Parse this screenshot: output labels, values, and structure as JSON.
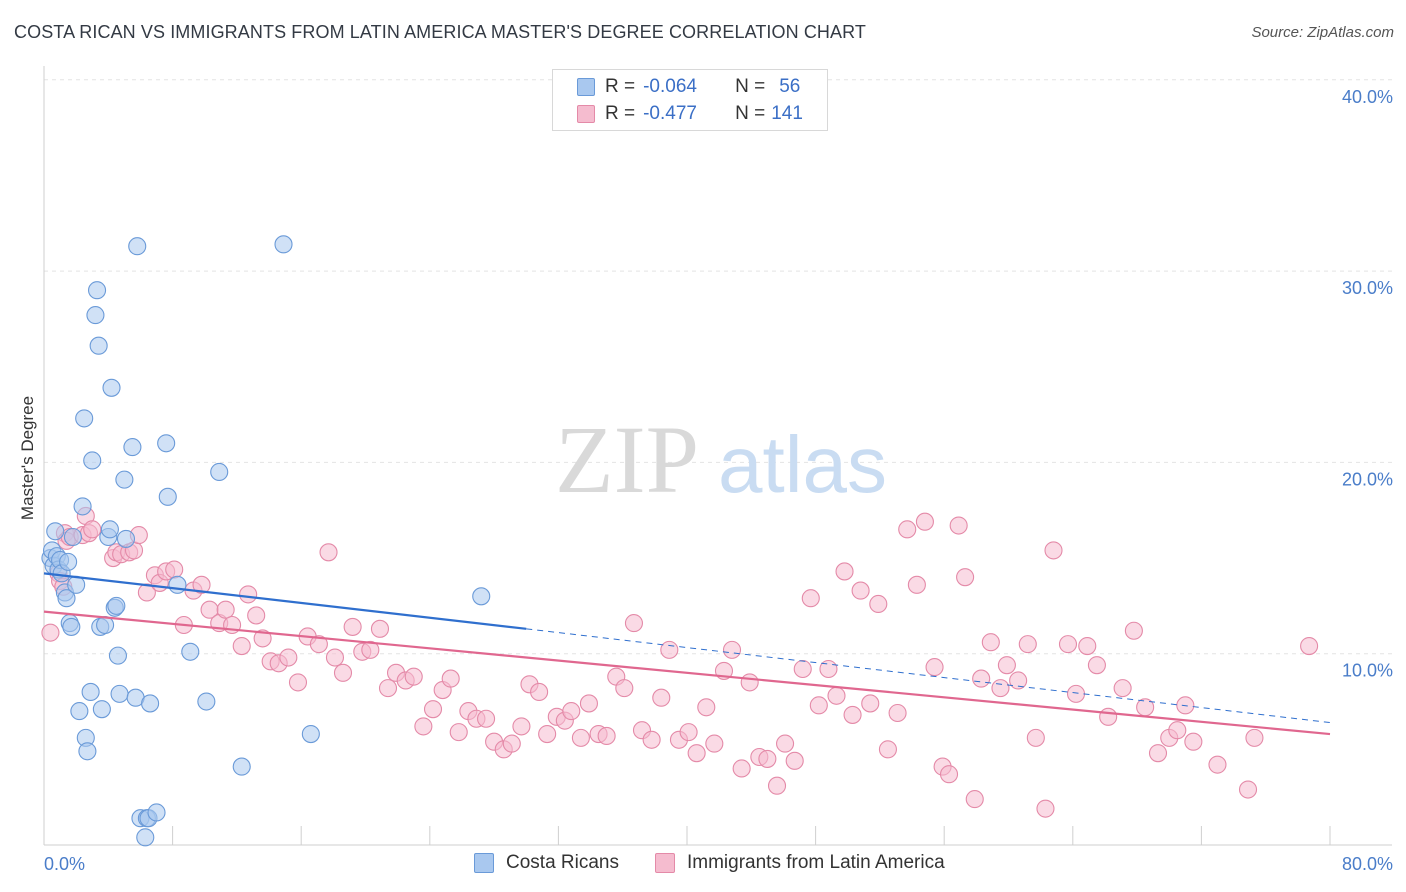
{
  "title": "COSTA RICAN VS IMMIGRANTS FROM LATIN AMERICA MASTER'S DEGREE CORRELATION CHART",
  "source": "Source: ZipAtlas.com",
  "watermark": {
    "zip": "ZIP",
    "atlas": "atlas"
  },
  "legend": {
    "r_label": "R =",
    "n_label": "N =",
    "rows": [
      {
        "r": "-0.064",
        "n": "56",
        "color": "#a9c8ef",
        "border": "#6a9ad8"
      },
      {
        "r": "-0.477",
        "n": "141",
        "color": "#f5bccf",
        "border": "#e48aa8"
      }
    ]
  },
  "bottom_legend": [
    {
      "label": "Costa Ricans",
      "color": "#a9c8ef",
      "border": "#6a9ad8"
    },
    {
      "label": "Immigrants from Latin America",
      "color": "#f5bccf",
      "border": "#e48aa8"
    }
  ],
  "chart_data": {
    "type": "scatter",
    "ylabel": "Master's Degree",
    "x_tick_labels": [
      "0.0%",
      "80.0%"
    ],
    "y_tick_labels": [
      "10.0%",
      "20.0%",
      "30.0%",
      "40.0%"
    ],
    "xlim": [
      0,
      80
    ],
    "ylim": [
      0,
      40
    ],
    "grid": true,
    "colors": {
      "blue_fill": "#a9c8ef",
      "blue_stroke": "#6a9ad8",
      "pink_fill": "#f5bccf",
      "pink_stroke": "#e48aa8",
      "blue_line": "#2f6fce",
      "pink_line": "#e0678f",
      "tick_label": "#4a7dc9"
    },
    "series": [
      {
        "name": "Costa Ricans",
        "trend": {
          "x0": 0,
          "y0": 14.2,
          "x1": 30,
          "y1": 11.3,
          "dash_to_x": 80,
          "dash_to_y": 6.4
        },
        "points": [
          [
            0.4,
            15.0
          ],
          [
            0.5,
            15.4
          ],
          [
            0.6,
            14.6
          ],
          [
            0.7,
            16.4
          ],
          [
            0.8,
            15.1
          ],
          [
            0.9,
            14.4
          ],
          [
            1.0,
            14.9
          ],
          [
            1.1,
            14.2
          ],
          [
            1.3,
            13.2
          ],
          [
            1.4,
            12.9
          ],
          [
            1.5,
            14.8
          ],
          [
            1.6,
            11.6
          ],
          [
            1.7,
            11.4
          ],
          [
            1.8,
            16.1
          ],
          [
            2.0,
            13.6
          ],
          [
            2.2,
            7.0
          ],
          [
            2.4,
            17.7
          ],
          [
            2.5,
            22.3
          ],
          [
            2.6,
            5.6
          ],
          [
            2.7,
            4.9
          ],
          [
            2.9,
            8.0
          ],
          [
            3.0,
            20.1
          ],
          [
            3.3,
            29.0
          ],
          [
            3.2,
            27.7
          ],
          [
            3.4,
            26.1
          ],
          [
            3.6,
            7.1
          ],
          [
            3.5,
            11.4
          ],
          [
            3.8,
            11.5
          ],
          [
            4.0,
            16.1
          ],
          [
            4.1,
            16.5
          ],
          [
            4.2,
            23.9
          ],
          [
            4.4,
            12.4
          ],
          [
            4.5,
            12.5
          ],
          [
            4.6,
            9.9
          ],
          [
            4.7,
            7.9
          ],
          [
            5.0,
            19.1
          ],
          [
            5.1,
            16.0
          ],
          [
            5.5,
            20.8
          ],
          [
            5.7,
            7.7
          ],
          [
            5.8,
            31.3
          ],
          [
            6.0,
            1.4
          ],
          [
            6.3,
            0.4
          ],
          [
            6.4,
            1.4
          ],
          [
            6.5,
            1.4
          ],
          [
            6.6,
            7.4
          ],
          [
            7.0,
            1.7
          ],
          [
            7.6,
            21.0
          ],
          [
            7.7,
            18.2
          ],
          [
            8.3,
            13.6
          ],
          [
            9.1,
            10.1
          ],
          [
            10.1,
            7.5
          ],
          [
            10.9,
            19.5
          ],
          [
            12.3,
            4.1
          ],
          [
            14.9,
            31.4
          ],
          [
            16.6,
            5.8
          ],
          [
            27.2,
            13.0
          ]
        ]
      },
      {
        "name": "Immigrants from Latin America",
        "trend": {
          "x0": 0,
          "y0": 12.2,
          "x1": 80,
          "y1": 5.8
        },
        "points": [
          [
            0.4,
            11.1
          ],
          [
            0.9,
            14.2
          ],
          [
            1.0,
            13.8
          ],
          [
            1.2,
            13.5
          ],
          [
            1.3,
            16.3
          ],
          [
            1.4,
            15.9
          ],
          [
            1.6,
            16.1
          ],
          [
            2.4,
            16.2
          ],
          [
            2.6,
            17.2
          ],
          [
            2.8,
            16.3
          ],
          [
            3.0,
            16.5
          ],
          [
            4.3,
            15.0
          ],
          [
            4.5,
            15.3
          ],
          [
            4.8,
            15.2
          ],
          [
            5.3,
            15.3
          ],
          [
            5.6,
            15.4
          ],
          [
            5.9,
            16.2
          ],
          [
            6.4,
            13.2
          ],
          [
            6.9,
            14.1
          ],
          [
            7.2,
            13.7
          ],
          [
            7.6,
            14.3
          ],
          [
            8.1,
            14.4
          ],
          [
            8.7,
            11.5
          ],
          [
            9.3,
            13.3
          ],
          [
            9.8,
            13.6
          ],
          [
            10.3,
            12.3
          ],
          [
            10.9,
            11.6
          ],
          [
            11.3,
            12.3
          ],
          [
            11.7,
            11.5
          ],
          [
            12.3,
            10.4
          ],
          [
            12.7,
            13.1
          ],
          [
            13.2,
            12.0
          ],
          [
            13.6,
            10.8
          ],
          [
            14.1,
            9.6
          ],
          [
            14.6,
            9.5
          ],
          [
            15.2,
            9.8
          ],
          [
            15.8,
            8.5
          ],
          [
            16.4,
            10.9
          ],
          [
            17.1,
            10.5
          ],
          [
            17.7,
            15.3
          ],
          [
            18.1,
            9.8
          ],
          [
            18.6,
            9.0
          ],
          [
            19.2,
            11.4
          ],
          [
            19.8,
            10.1
          ],
          [
            20.3,
            10.2
          ],
          [
            20.9,
            11.3
          ],
          [
            21.4,
            8.2
          ],
          [
            21.9,
            9.0
          ],
          [
            22.5,
            8.6
          ],
          [
            23.0,
            8.8
          ],
          [
            23.6,
            6.2
          ],
          [
            24.2,
            7.1
          ],
          [
            24.8,
            8.1
          ],
          [
            25.3,
            8.7
          ],
          [
            25.8,
            5.9
          ],
          [
            26.4,
            7.0
          ],
          [
            26.9,
            6.6
          ],
          [
            27.5,
            6.6
          ],
          [
            28.0,
            5.4
          ],
          [
            28.6,
            5.0
          ],
          [
            29.1,
            5.3
          ],
          [
            29.7,
            6.2
          ],
          [
            30.2,
            8.4
          ],
          [
            30.8,
            8.0
          ],
          [
            31.3,
            5.8
          ],
          [
            31.9,
            6.7
          ],
          [
            32.4,
            6.5
          ],
          [
            32.8,
            7.0
          ],
          [
            33.4,
            5.6
          ],
          [
            33.9,
            7.4
          ],
          [
            34.5,
            5.8
          ],
          [
            35.0,
            5.7
          ],
          [
            35.6,
            8.8
          ],
          [
            36.1,
            8.2
          ],
          [
            36.7,
            11.6
          ],
          [
            37.2,
            6.0
          ],
          [
            37.8,
            5.5
          ],
          [
            38.4,
            7.7
          ],
          [
            38.9,
            10.2
          ],
          [
            39.5,
            5.5
          ],
          [
            40.1,
            5.9
          ],
          [
            40.6,
            4.8
          ],
          [
            41.2,
            7.2
          ],
          [
            41.7,
            5.3
          ],
          [
            42.3,
            9.1
          ],
          [
            42.8,
            10.2
          ],
          [
            43.4,
            4.0
          ],
          [
            43.9,
            8.5
          ],
          [
            44.5,
            4.6
          ],
          [
            45.0,
            4.5
          ],
          [
            45.6,
            3.1
          ],
          [
            46.1,
            5.3
          ],
          [
            46.7,
            4.4
          ],
          [
            47.2,
            9.2
          ],
          [
            47.7,
            12.9
          ],
          [
            48.2,
            7.3
          ],
          [
            48.8,
            9.2
          ],
          [
            49.3,
            7.8
          ],
          [
            49.8,
            14.3
          ],
          [
            50.3,
            6.8
          ],
          [
            50.8,
            13.3
          ],
          [
            51.4,
            7.4
          ],
          [
            51.9,
            12.6
          ],
          [
            52.5,
            5.0
          ],
          [
            53.1,
            6.9
          ],
          [
            53.7,
            16.5
          ],
          [
            54.3,
            13.6
          ],
          [
            54.8,
            16.9
          ],
          [
            55.4,
            9.3
          ],
          [
            55.9,
            4.1
          ],
          [
            56.3,
            3.7
          ],
          [
            56.9,
            16.7
          ],
          [
            57.3,
            14.0
          ],
          [
            57.9,
            2.4
          ],
          [
            58.3,
            8.7
          ],
          [
            58.9,
            10.6
          ],
          [
            59.5,
            8.2
          ],
          [
            59.9,
            9.4
          ],
          [
            60.6,
            8.6
          ],
          [
            61.2,
            10.5
          ],
          [
            61.7,
            5.6
          ],
          [
            62.3,
            1.9
          ],
          [
            62.8,
            15.4
          ],
          [
            63.7,
            10.5
          ],
          [
            64.2,
            7.9
          ],
          [
            64.9,
            10.4
          ],
          [
            65.5,
            9.4
          ],
          [
            66.2,
            6.7
          ],
          [
            67.1,
            8.2
          ],
          [
            67.8,
            11.2
          ],
          [
            68.5,
            7.2
          ],
          [
            69.3,
            4.8
          ],
          [
            70.0,
            5.6
          ],
          [
            70.5,
            6.0
          ],
          [
            71.0,
            7.3
          ],
          [
            71.5,
            5.4
          ],
          [
            73.0,
            4.2
          ],
          [
            74.9,
            2.9
          ],
          [
            75.3,
            5.6
          ],
          [
            78.7,
            10.4
          ]
        ]
      }
    ]
  }
}
